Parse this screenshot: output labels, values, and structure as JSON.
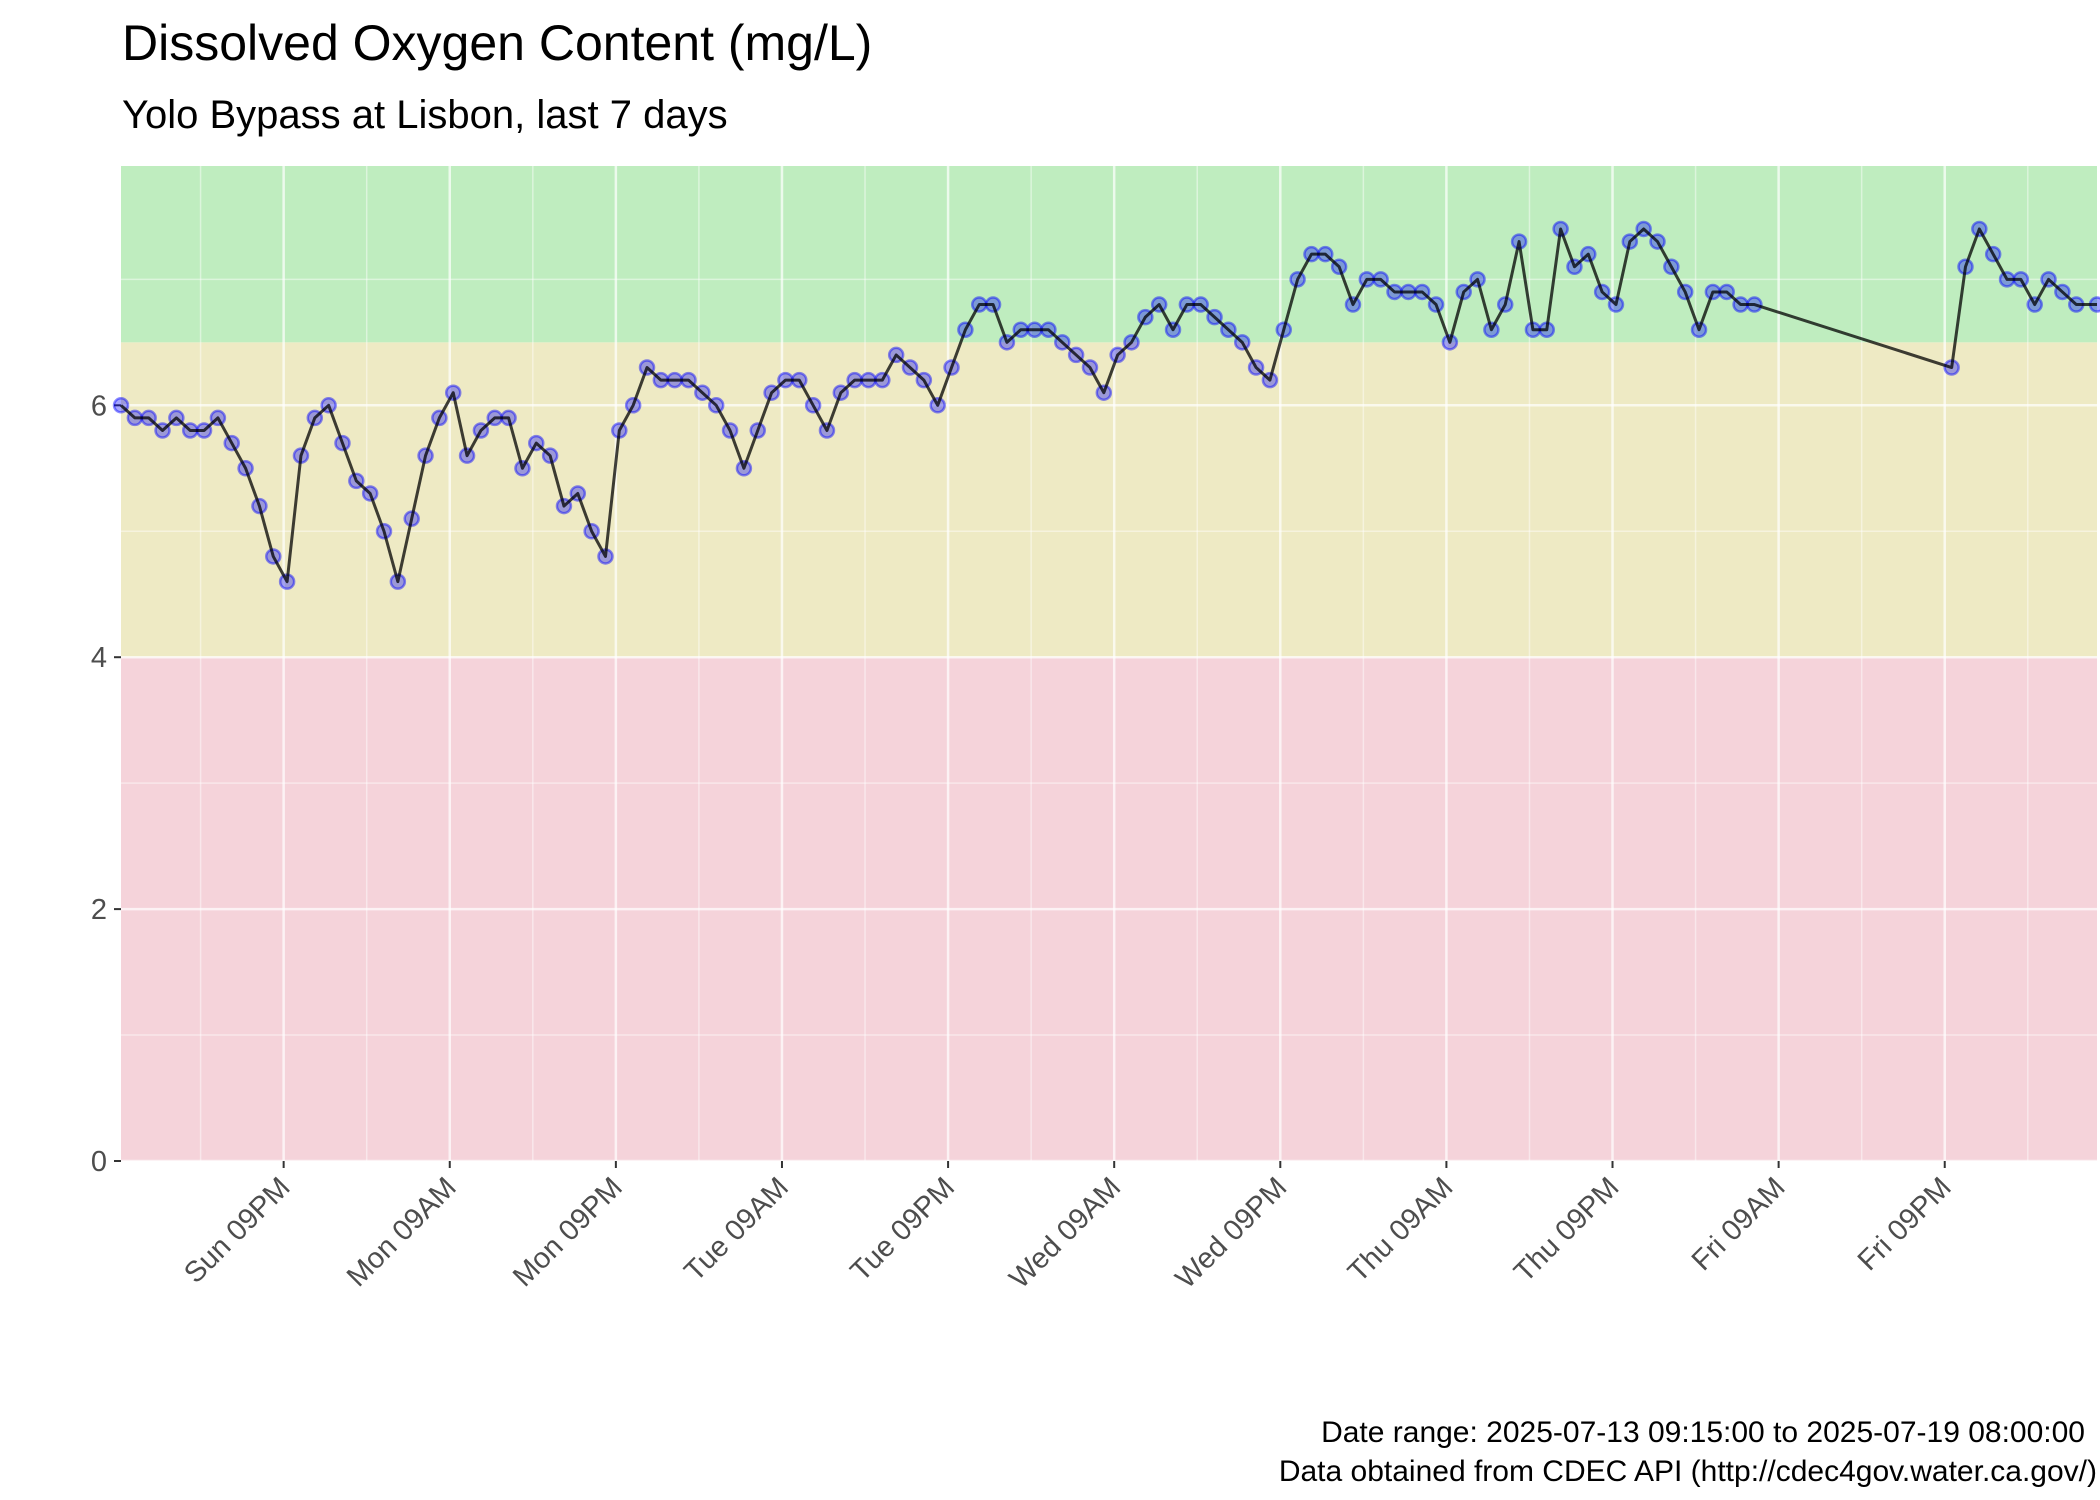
{
  "chart_data": {
    "type": "line",
    "title": "Dissolved Oxygen Content (mg/L)",
    "subtitle": "Yolo Bypass at Lisbon, last 7 days",
    "caption": [
      "Date range: 2025-07-13 09:15:00 to 2025-07-19 08:00:00",
      "Data obtained from CDEC API (http://cdec4gov.water.ca.gov/)"
    ],
    "x": [
      "2025-07-13 09:15",
      "2025-07-13 10:15",
      "2025-07-13 11:15",
      "2025-07-13 12:15",
      "2025-07-13 13:15",
      "2025-07-13 14:15",
      "2025-07-13 15:15",
      "2025-07-13 16:15",
      "2025-07-13 17:15",
      "2025-07-13 18:15",
      "2025-07-13 19:15",
      "2025-07-13 20:15",
      "2025-07-13 21:15",
      "2025-07-13 22:15",
      "2025-07-13 23:15",
      "2025-07-14 00:15",
      "2025-07-14 01:15",
      "2025-07-14 02:15",
      "2025-07-14 03:15",
      "2025-07-14 04:15",
      "2025-07-14 05:15",
      "2025-07-14 06:15",
      "2025-07-14 07:15",
      "2025-07-14 08:15",
      "2025-07-14 09:15",
      "2025-07-14 10:15",
      "2025-07-14 11:15",
      "2025-07-14 12:15",
      "2025-07-14 13:15",
      "2025-07-14 14:15",
      "2025-07-14 15:15",
      "2025-07-14 16:15",
      "2025-07-14 17:15",
      "2025-07-14 18:15",
      "2025-07-14 19:15",
      "2025-07-14 20:15",
      "2025-07-14 21:15",
      "2025-07-14 22:15",
      "2025-07-14 23:15",
      "2025-07-15 00:15",
      "2025-07-15 01:15",
      "2025-07-15 02:15",
      "2025-07-15 03:15",
      "2025-07-15 04:15",
      "2025-07-15 05:15",
      "2025-07-15 06:15",
      "2025-07-15 07:15",
      "2025-07-15 08:15",
      "2025-07-15 09:15",
      "2025-07-15 10:15",
      "2025-07-15 11:15",
      "2025-07-15 12:15",
      "2025-07-15 13:15",
      "2025-07-15 14:15",
      "2025-07-15 15:15",
      "2025-07-15 16:15",
      "2025-07-15 17:15",
      "2025-07-15 18:15",
      "2025-07-15 19:15",
      "2025-07-15 20:15",
      "2025-07-15 21:15",
      "2025-07-15 22:15",
      "2025-07-15 23:15",
      "2025-07-16 00:15",
      "2025-07-16 01:15",
      "2025-07-16 02:15",
      "2025-07-16 03:15",
      "2025-07-16 04:15",
      "2025-07-16 05:15",
      "2025-07-16 06:15",
      "2025-07-16 07:15",
      "2025-07-16 08:15",
      "2025-07-16 09:15",
      "2025-07-16 10:15",
      "2025-07-16 11:15",
      "2025-07-16 12:15",
      "2025-07-16 13:15",
      "2025-07-16 14:15",
      "2025-07-16 15:15",
      "2025-07-16 16:15",
      "2025-07-16 17:15",
      "2025-07-16 18:15",
      "2025-07-16 19:15",
      "2025-07-16 20:15",
      "2025-07-16 21:15",
      "2025-07-16 22:15",
      "2025-07-16 23:15",
      "2025-07-17 00:15",
      "2025-07-17 01:15",
      "2025-07-17 02:15",
      "2025-07-17 03:15",
      "2025-07-17 04:15",
      "2025-07-17 05:15",
      "2025-07-17 06:15",
      "2025-07-17 07:15",
      "2025-07-17 08:15",
      "2025-07-17 09:15",
      "2025-07-17 10:15",
      "2025-07-17 11:15",
      "2025-07-17 12:15",
      "2025-07-17 13:15",
      "2025-07-17 14:15",
      "2025-07-17 15:15",
      "2025-07-17 16:15",
      "2025-07-17 17:15",
      "2025-07-17 18:15",
      "2025-07-17 19:15",
      "2025-07-17 20:15",
      "2025-07-17 21:15",
      "2025-07-17 22:15",
      "2025-07-17 23:15",
      "2025-07-18 00:15",
      "2025-07-18 01:15",
      "2025-07-18 02:15",
      "2025-07-18 03:15",
      "2025-07-18 04:15",
      "2025-07-18 05:15",
      "2025-07-18 06:15",
      "2025-07-18 07:15",
      "2025-07-18 21:30",
      "2025-07-18 22:30",
      "2025-07-18 23:30",
      "2025-07-19 00:30",
      "2025-07-19 01:30",
      "2025-07-19 02:30",
      "2025-07-19 03:30",
      "2025-07-19 04:30",
      "2025-07-19 05:30",
      "2025-07-19 06:30",
      "2025-07-19 08:00"
    ],
    "series": [
      {
        "color": "#0000ff",
        "line_color": "#000000",
        "values": [
          6.0,
          5.9,
          5.9,
          5.8,
          5.9,
          5.8,
          5.8,
          5.9,
          5.7,
          5.5,
          5.2,
          4.8,
          4.6,
          5.6,
          5.9,
          6.0,
          5.7,
          5.4,
          5.3,
          5.0,
          4.6,
          5.1,
          5.6,
          5.9,
          6.1,
          5.6,
          5.8,
          5.9,
          5.9,
          5.5,
          5.7,
          5.6,
          5.2,
          5.3,
          5.0,
          4.8,
          5.8,
          6.0,
          6.3,
          6.2,
          6.2,
          6.2,
          6.1,
          6.0,
          5.8,
          5.5,
          5.8,
          6.1,
          6.2,
          6.2,
          6.0,
          5.8,
          6.1,
          6.2,
          6.2,
          6.2,
          6.4,
          6.3,
          6.2,
          6.0,
          6.3,
          6.6,
          6.8,
          6.8,
          6.5,
          6.6,
          6.6,
          6.6,
          6.5,
          6.4,
          6.3,
          6.1,
          6.4,
          6.5,
          6.7,
          6.8,
          6.6,
          6.8,
          6.8,
          6.7,
          6.6,
          6.5,
          6.3,
          6.2,
          6.6,
          7.0,
          7.2,
          7.2,
          7.1,
          6.8,
          7.0,
          7.0,
          6.9,
          6.9,
          6.9,
          6.8,
          6.5,
          6.9,
          7.0,
          6.6,
          6.8,
          7.3,
          6.6,
          6.6,
          7.4,
          7.1,
          7.2,
          6.9,
          6.8,
          7.3,
          7.4,
          7.3,
          7.1,
          6.9,
          6.6,
          6.9,
          6.9,
          6.8,
          6.8,
          6.3,
          7.1,
          7.4,
          7.2,
          7.0,
          7.0,
          6.8,
          7.0,
          6.9,
          6.8,
          6.8
        ]
      }
    ],
    "bands": [
      {
        "from": 0,
        "to": 4,
        "color": "#f5d3da"
      },
      {
        "from": 4,
        "to": 6.5,
        "color": "#eeeac4"
      },
      {
        "from": 6.5,
        "to": 7.9,
        "color": "#bfedbf"
      }
    ],
    "xlim": [
      "2025-07-13 09:15",
      "2025-07-19 08:00"
    ],
    "xticks": [
      {
        "value": "2025-07-13 21:00",
        "label": "Sun 09PM"
      },
      {
        "value": "2025-07-14 09:00",
        "label": "Mon 09AM"
      },
      {
        "value": "2025-07-14 21:00",
        "label": "Mon 09PM"
      },
      {
        "value": "2025-07-15 09:00",
        "label": "Tue 09AM"
      },
      {
        "value": "2025-07-15 21:00",
        "label": "Tue 09PM"
      },
      {
        "value": "2025-07-16 09:00",
        "label": "Wed 09AM"
      },
      {
        "value": "2025-07-16 21:00",
        "label": "Wed 09PM"
      },
      {
        "value": "2025-07-17 09:00",
        "label": "Thu 09AM"
      },
      {
        "value": "2025-07-17 21:00",
        "label": "Thu 09PM"
      },
      {
        "value": "2025-07-18 09:00",
        "label": "Fri 09AM"
      },
      {
        "value": "2025-07-18 21:00",
        "label": "Fri 09PM"
      }
    ],
    "ylim": [
      0,
      7.9
    ],
    "yticks": [
      0,
      2,
      4,
      6
    ],
    "grid": true
  }
}
